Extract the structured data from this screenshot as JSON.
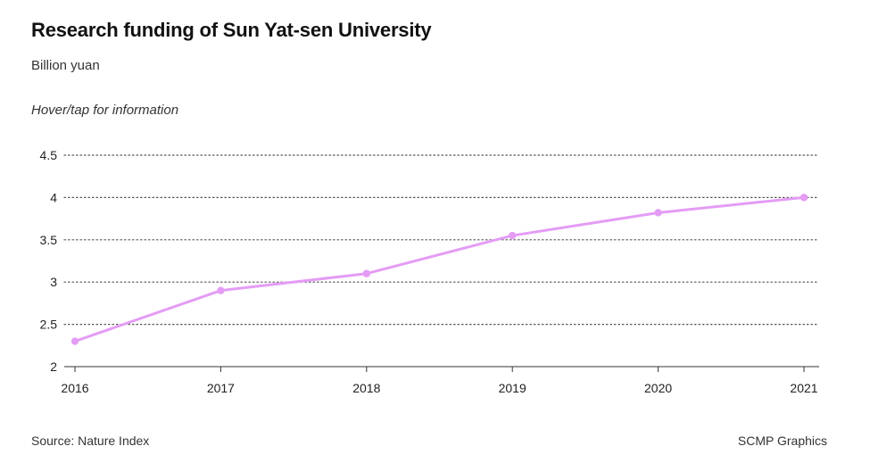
{
  "header": {
    "title": "Research funding of Sun Yat-sen University",
    "subtitle": "Billion yuan",
    "hint": "Hover/tap for information"
  },
  "footer": {
    "source": "Source: Nature Index",
    "credit": "SCMP Graphics"
  },
  "colors": {
    "line": "#e49cf5",
    "grid": "#555555",
    "axis": "#333333"
  },
  "chart_data": {
    "type": "line",
    "title": "Research funding of Sun Yat-sen University",
    "subtitle": "Billion yuan",
    "x": [
      "2016",
      "2017",
      "2018",
      "2019",
      "2020",
      "2021"
    ],
    "series": [
      {
        "values": [
          2.3,
          2.9,
          3.1,
          3.55,
          3.82,
          4.0
        ]
      }
    ],
    "ylim": [
      2,
      4.5
    ],
    "yticks": [
      "2",
      "2.5",
      "3",
      "3.5",
      "4",
      "4.5"
    ],
    "grid": "horizontal dotted",
    "legend": "none"
  }
}
